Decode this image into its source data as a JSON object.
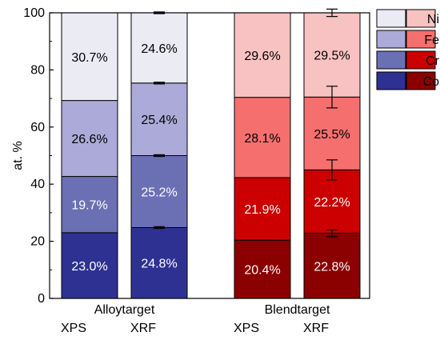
{
  "chart_data": {
    "type": "bar",
    "stacked": true,
    "title": "",
    "xlabel": "",
    "ylabel": "at. %",
    "ylim": [
      0,
      100
    ],
    "yticks": [
      0,
      20,
      40,
      60,
      80,
      100
    ],
    "grid": false,
    "legend_position": "top-right",
    "groups": [
      {
        "name": "Alloytarget",
        "bars": [
          {
            "method": "XPS",
            "values": [
              23.0,
              19.7,
              26.6,
              30.7
            ],
            "labels": [
              "23.0%",
              "19.7%",
              "26.6%",
              "30.7%"
            ],
            "errors": [
              0,
              0,
              0,
              0
            ]
          },
          {
            "method": "XRF",
            "values": [
              24.8,
              25.2,
              25.4,
              24.6
            ],
            "labels": [
              "24.8%",
              "25.2%",
              "25.4%",
              "24.6%"
            ],
            "errors": [
              0.3,
              0.3,
              0.3,
              0.3
            ]
          }
        ]
      },
      {
        "name": "Blendtarget",
        "bars": [
          {
            "method": "XPS",
            "values": [
              20.4,
              21.9,
              28.1,
              29.6
            ],
            "labels": [
              "20.4%",
              "21.9%",
              "28.1%",
              "29.6%"
            ],
            "errors": [
              0,
              0,
              0,
              0
            ]
          },
          {
            "method": "XRF",
            "values": [
              22.8,
              22.2,
              25.5,
              29.5
            ],
            "labels": [
              "22.8%",
              "22.2%",
              "25.5%",
              "29.5%"
            ],
            "errors": [
              1.2,
              3.5,
              3.8,
              1.3
            ]
          }
        ]
      }
    ],
    "series": [
      {
        "name": "Co",
        "alloy_color": "#2e3192",
        "blend_color": "#8b0000"
      },
      {
        "name": "Cr",
        "alloy_color": "#6b6fb4",
        "blend_color": "#cc0000"
      },
      {
        "name": "Fe",
        "alloy_color": "#acaad8",
        "blend_color": "#f56f6f"
      },
      {
        "name": "Ni",
        "alloy_color": "#ebebf4",
        "blend_color": "#f9c2c2"
      }
    ],
    "label_colors": {
      "alloy": [
        "#ffffff",
        "#ffffff",
        "#000000",
        "#000000"
      ],
      "blend": [
        "#ffffff",
        "#ffffff",
        "#000000",
        "#000000"
      ]
    }
  }
}
